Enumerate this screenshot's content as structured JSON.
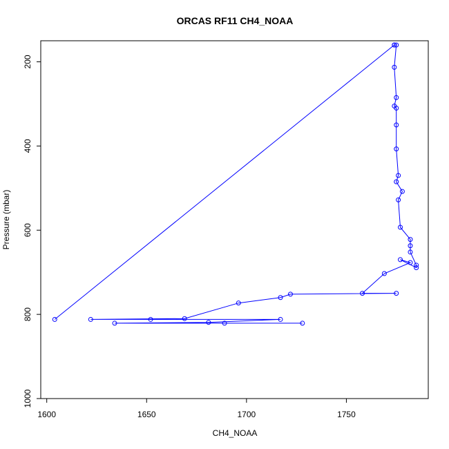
{
  "chart_data": {
    "type": "line",
    "title": "ORCAS RF11 CH4_NOAA",
    "xlabel": "CH4_NOAA",
    "ylabel": "Pressure (mbar)",
    "xlim": [
      1597,
      1791
    ],
    "ylim": [
      1000,
      150
    ],
    "y_reversed": true,
    "x_ticks": [
      1600,
      1650,
      1700,
      1750
    ],
    "y_ticks": [
      200,
      400,
      600,
      800,
      1000
    ],
    "grid": false,
    "line_color": "#0000ff",
    "series": [
      {
        "marker": "open-circle",
        "points": [
          [
            1604,
            812
          ],
          [
            1774,
            160
          ],
          [
            1774,
            160
          ],
          [
            1775,
            160
          ],
          [
            1774,
            213
          ],
          [
            1775,
            285
          ],
          [
            1774,
            305
          ],
          [
            1775,
            310
          ],
          [
            1775,
            350
          ],
          [
            1775,
            407
          ],
          [
            1776,
            470
          ],
          [
            1775,
            485
          ],
          [
            1778,
            508
          ],
          [
            1776,
            528
          ],
          [
            1777,
            593
          ],
          [
            1782,
            622
          ],
          [
            1782,
            637
          ],
          [
            1782,
            652
          ],
          [
            1785,
            683
          ],
          [
            1785,
            689
          ],
          [
            1777,
            670
          ],
          [
            1782,
            677
          ],
          [
            1769,
            703
          ],
          [
            1758,
            750
          ],
          [
            1775,
            750
          ],
          [
            1722,
            752
          ],
          [
            1717,
            760
          ],
          [
            1696,
            773
          ],
          [
            1669,
            810
          ],
          [
            1622,
            812
          ],
          [
            1652,
            812
          ],
          [
            1717,
            812
          ],
          [
            1681,
            819
          ],
          [
            1634,
            821
          ],
          [
            1689,
            821
          ],
          [
            1728,
            821
          ]
        ]
      }
    ]
  }
}
